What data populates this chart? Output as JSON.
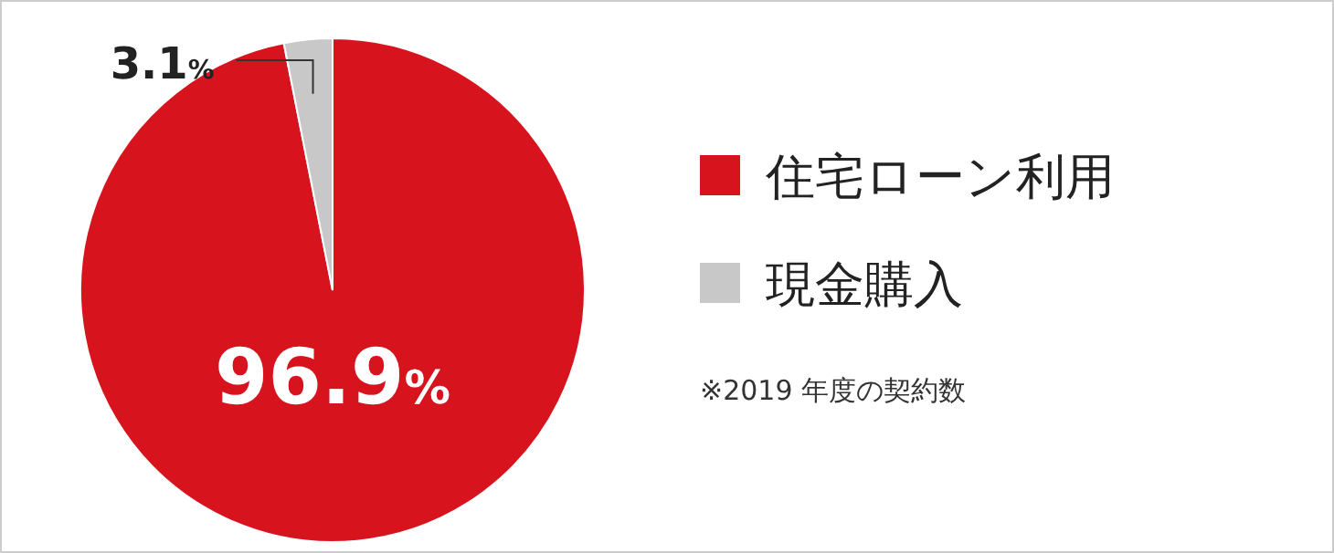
{
  "chart_data": {
    "type": "pie",
    "categories": [
      "住宅ローン利用",
      "現金購入"
    ],
    "values": [
      96.9,
      3.1
    ],
    "colors": [
      "#d7141e",
      "#c8c8c8"
    ],
    "value_labels": [
      "96.9%",
      "3.1%"
    ],
    "legend": "right",
    "annotations": [
      "※2019 年度の契約数"
    ]
  }
}
